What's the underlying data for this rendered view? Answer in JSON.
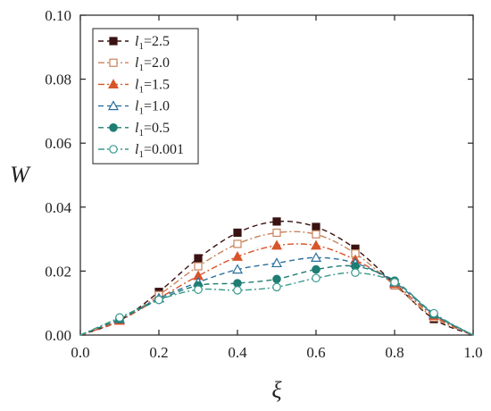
{
  "chart_data": {
    "type": "line",
    "title": "",
    "xlabel": "ξ",
    "ylabel": "W",
    "xlim": [
      0.0,
      1.0
    ],
    "ylim": [
      0.0,
      0.1
    ],
    "xticks": [
      "0.0",
      "0.2",
      "0.4",
      "0.6",
      "0.8",
      "1.0"
    ],
    "yticks": [
      "0.00",
      "0.02",
      "0.04",
      "0.06",
      "0.08",
      "0.10"
    ],
    "legend_position": "top-left",
    "grid": false,
    "series": [
      {
        "name_var": "l",
        "name_sub": "1",
        "name_val": "=2.5",
        "color": "#3a1212",
        "marker": "square-filled",
        "dash": "dashed",
        "x": [
          0,
          0.1,
          0.2,
          0.3,
          0.4,
          0.5,
          0.6,
          0.7,
          0.8,
          0.9,
          1.0
        ],
        "values": [
          0,
          0.0045,
          0.0135,
          0.024,
          0.032,
          0.0355,
          0.0338,
          0.027,
          0.016,
          0.005,
          0
        ]
      },
      {
        "name_var": "l",
        "name_sub": "1",
        "name_val": "=2.0",
        "color": "#c8825a",
        "marker": "square-open",
        "dash": "dashdot",
        "x": [
          0,
          0.1,
          0.2,
          0.3,
          0.4,
          0.5,
          0.6,
          0.7,
          0.8,
          0.9,
          1.0
        ],
        "values": [
          0,
          0.0045,
          0.0125,
          0.0215,
          0.0285,
          0.032,
          0.0315,
          0.0255,
          0.0155,
          0.0055,
          0
        ]
      },
      {
        "name_var": "l",
        "name_sub": "1",
        "name_val": "=1.5",
        "color": "#d8542a",
        "marker": "triangle-filled",
        "dash": "dashdot",
        "x": [
          0,
          0.1,
          0.2,
          0.3,
          0.4,
          0.5,
          0.6,
          0.7,
          0.8,
          0.9,
          1.0
        ],
        "values": [
          0,
          0.0045,
          0.0115,
          0.0185,
          0.0245,
          0.028,
          0.028,
          0.0235,
          0.016,
          0.006,
          0
        ]
      },
      {
        "name_var": "l",
        "name_sub": "1",
        "name_val": "=1.0",
        "color": "#2b6f9c",
        "marker": "triangle-open",
        "dash": "dashed",
        "x": [
          0,
          0.1,
          0.2,
          0.3,
          0.4,
          0.5,
          0.6,
          0.7,
          0.8,
          0.9,
          1.0
        ],
        "values": [
          0,
          0.005,
          0.0115,
          0.0165,
          0.0205,
          0.0225,
          0.0242,
          0.0225,
          0.0165,
          0.0065,
          0
        ]
      },
      {
        "name_var": "l",
        "name_sub": "1",
        "name_val": "=0.5",
        "color": "#1f7d72",
        "marker": "circle-filled",
        "dash": "dashed",
        "x": [
          0,
          0.1,
          0.2,
          0.3,
          0.4,
          0.5,
          0.6,
          0.7,
          0.8,
          0.9,
          1.0
        ],
        "values": [
          0,
          0.005,
          0.011,
          0.0155,
          0.0162,
          0.0175,
          0.0205,
          0.0215,
          0.017,
          0.0065,
          0
        ]
      },
      {
        "name_var": "l",
        "name_sub": "1",
        "name_val": "=0.001",
        "color": "#3a9a8e",
        "marker": "circle-open",
        "dash": "dashdot",
        "x": [
          0,
          0.1,
          0.2,
          0.3,
          0.4,
          0.5,
          0.6,
          0.7,
          0.8,
          0.9,
          1.0
        ],
        "values": [
          0,
          0.0055,
          0.011,
          0.0142,
          0.014,
          0.015,
          0.0178,
          0.0195,
          0.0165,
          0.0068,
          0
        ]
      }
    ]
  }
}
